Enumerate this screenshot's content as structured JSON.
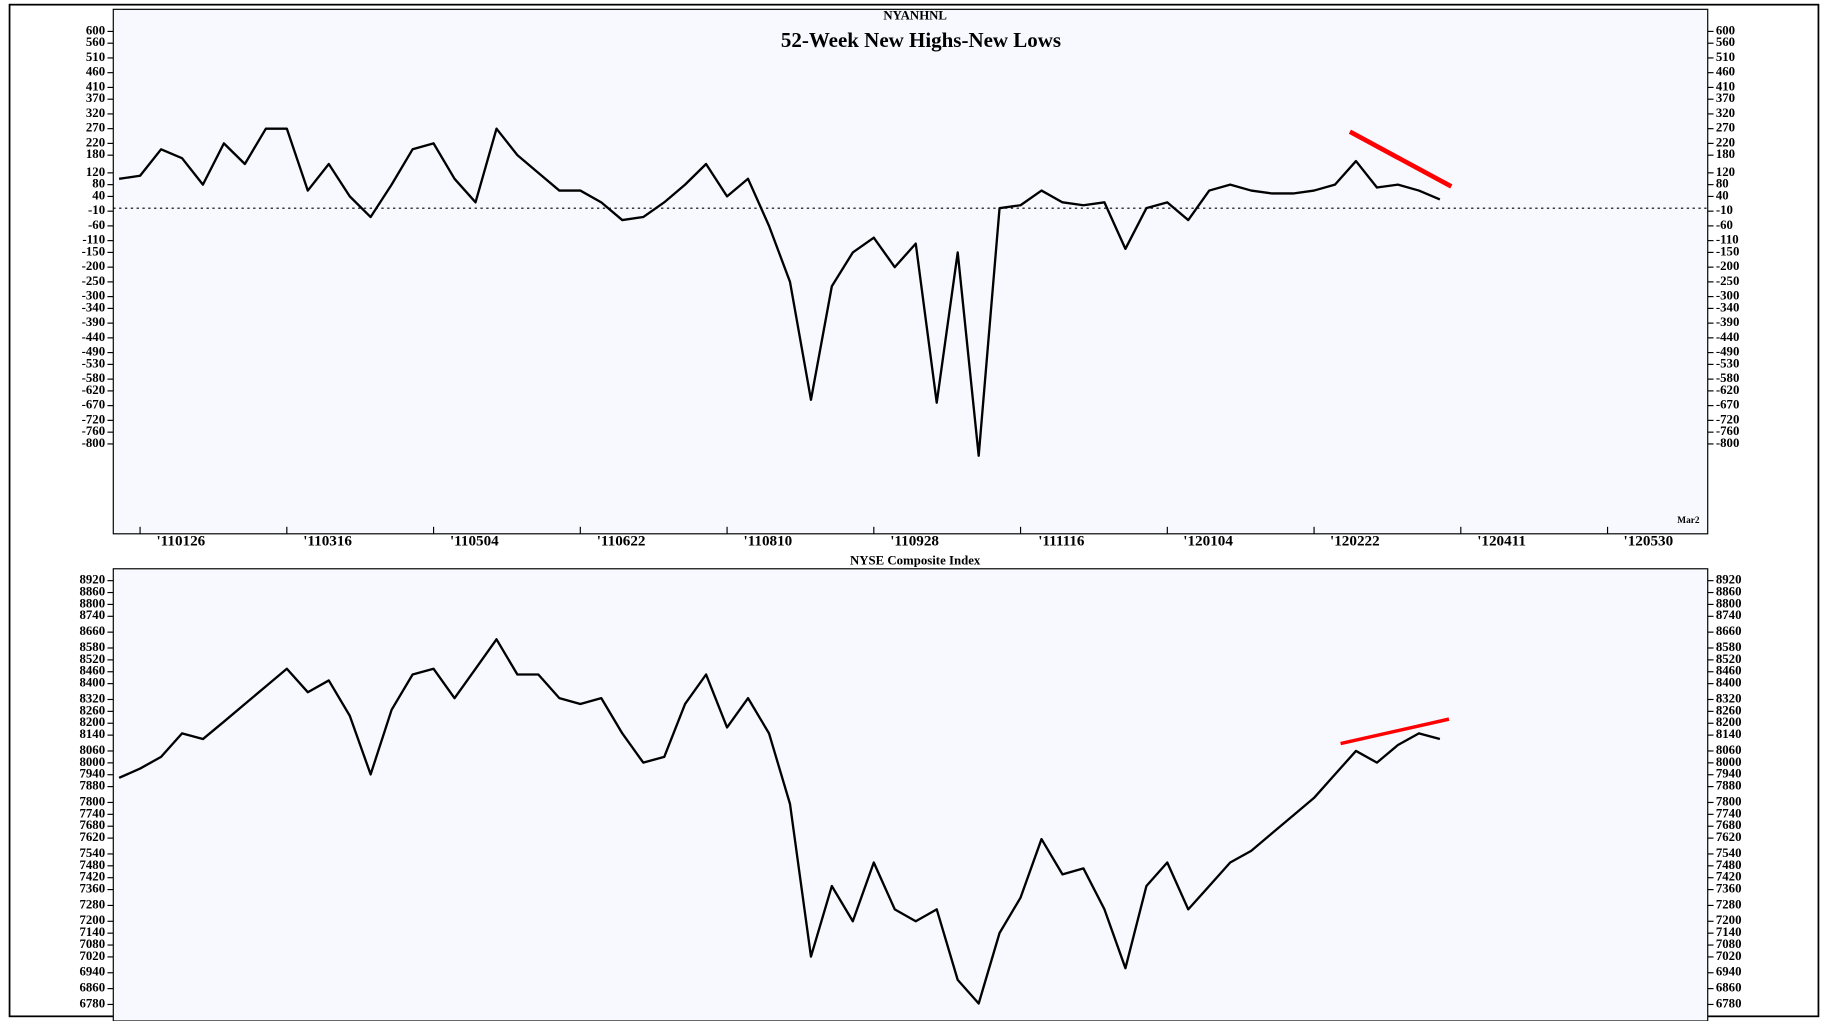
{
  "chart_data": [
    {
      "type": "line",
      "title": "NYANHNL",
      "subtitle": "52-Week New Highs-New Lows",
      "annotation": "Mar2",
      "color": "#000000",
      "accent_color": "#ff0000",
      "negative_tick_color": "#ff0000",
      "categories": [
        null,
        "'110126",
        null,
        null,
        null,
        null,
        null,
        null,
        "'110316",
        null,
        null,
        null,
        null,
        null,
        null,
        "'110504",
        null,
        null,
        null,
        null,
        null,
        null,
        "'110622",
        null,
        null,
        null,
        null,
        null,
        null,
        "'110810",
        null,
        null,
        null,
        null,
        null,
        null,
        "'110928",
        null,
        null,
        null,
        null,
        null,
        null,
        "'111116",
        null,
        null,
        null,
        null,
        null,
        null,
        "'120104",
        null,
        null,
        null,
        null,
        null,
        null,
        "'120222",
        null,
        null,
        null,
        null,
        null,
        null,
        "'120411",
        null,
        null,
        null,
        null,
        null,
        null,
        "'120530",
        null,
        null,
        null,
        null
      ],
      "values": [
        100,
        110,
        200,
        170,
        80,
        220,
        150,
        270,
        270,
        60,
        150,
        40,
        -30,
        80,
        200,
        220,
        100,
        20,
        270,
        180,
        120,
        60,
        60,
        20,
        -40,
        -30,
        20,
        80,
        150,
        40,
        100,
        -60,
        -250,
        -650,
        -265,
        -150,
        -100,
        -200,
        -120,
        -660,
        -150,
        -840,
        0,
        10,
        60,
        20,
        10,
        20,
        -138,
        0,
        20,
        -40,
        60,
        80,
        60,
        50,
        50,
        60,
        80,
        160,
        70,
        80,
        60,
        30,
        null,
        null,
        null,
        null,
        null,
        null,
        null,
        null,
        null,
        null,
        null,
        null
      ],
      "ylim": [
        -1105,
        675
      ],
      "yticks": [
        600,
        560,
        510,
        460,
        410,
        370,
        320,
        270,
        220,
        180,
        120,
        80,
        40,
        -10,
        -60,
        -110,
        -150,
        -200,
        -250,
        -300,
        -340,
        -390,
        -440,
        -490,
        -530,
        -580,
        -620,
        -670,
        -720,
        -760,
        -800
      ]
    },
    {
      "type": "line",
      "title": "NYSE Composite Index",
      "color": "#000000",
      "values": [
        7924,
        7971,
        8030,
        8149,
        8120,
        8208,
        8297,
        8386,
        8475,
        8357,
        8416,
        8238,
        7942,
        8268,
        8446,
        8475,
        8327,
        8475,
        8624,
        8446,
        8446,
        8327,
        8297,
        8327,
        8149,
        8001,
        8030,
        8297,
        8446,
        8179,
        8327,
        8149,
        7793,
        7022,
        7378,
        7200,
        7497,
        7260,
        7200,
        7260,
        6904,
        6785,
        7141,
        7319,
        7615,
        7437,
        7467,
        7260,
        6963,
        7378,
        7497,
        7260,
        7378,
        7497,
        7556,
        7645,
        7734,
        7823,
        7942,
        8060,
        8001,
        8090,
        8149,
        8120,
        null,
        null,
        null,
        null,
        null,
        null,
        null,
        null,
        null,
        null,
        null,
        null
      ],
      "ylim": [
        6720,
        8980
      ],
      "yticks": [
        8920,
        8860,
        8800,
        8740,
        8660,
        8580,
        8520,
        8460,
        8400,
        8320,
        8260,
        8200,
        8140,
        8060,
        8000,
        7940,
        7880,
        7800,
        7740,
        7680,
        7620,
        7540,
        7480,
        7420,
        7360,
        7280,
        7200,
        7140,
        7080,
        7020,
        6940,
        6860,
        6780
      ]
    }
  ]
}
